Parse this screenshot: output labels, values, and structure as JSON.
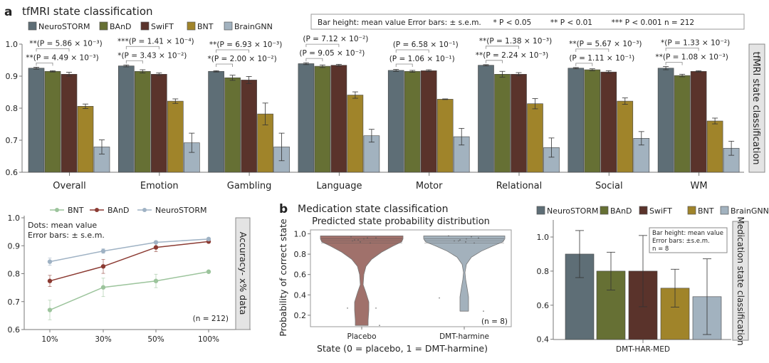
{
  "panel_a": {
    "letter": "a",
    "title": "tfMRI state classification",
    "legend_box_text": "Bar height: mean value Error bars: ± s.e.m.     * P < 0.05        ** P < 0.01        *** P < 0.001 n = 212",
    "side_label": "tfMRI state classification"
  },
  "panel_b": {
    "letter": "b",
    "title": "Medication state classification"
  },
  "colors": {
    "NeuroSTORM": "#5e6e76",
    "BAnD": "#667034",
    "SwiFT": "#5a332b",
    "BNT": "#a0842a",
    "BrainGNN": "#a2b2bf",
    "line_BNT": "#9cc49c",
    "line_BAnD": "#8b3a32",
    "line_NeuroSTORM": "#9fb2c4",
    "violin_placebo": "#a0716b",
    "violin_dmt": "#a3b1bc"
  },
  "chart_data": [
    {
      "id": "tfmri",
      "type": "bar",
      "title": "tfMRI state classification",
      "ylabel": "",
      "xlabel": "",
      "ylim": [
        0.6,
        1.0
      ],
      "yticks": [
        "0.6",
        "0.7",
        "0.8",
        "0.9",
        "1.0"
      ],
      "legend": [
        "NeuroSTORM",
        "BAnD",
        "SwiFT",
        "BNT",
        "BrainGNN"
      ],
      "legend_position": "top-left",
      "categories": [
        "Overall",
        "Emotion",
        "Gambling",
        "Language",
        "Motor",
        "Relational",
        "Social",
        "WM"
      ],
      "series": [
        {
          "name": "NeuroSTORM",
          "values": [
            0.925,
            0.932,
            0.915,
            0.939,
            0.918,
            0.934,
            0.925,
            0.925
          ],
          "sem": [
            0.003,
            0.003,
            0.002,
            0.003,
            0.003,
            0.002,
            0.002,
            0.005
          ]
        },
        {
          "name": "BAnD",
          "values": [
            0.915,
            0.915,
            0.895,
            0.931,
            0.915,
            0.906,
            0.92,
            0.902
          ],
          "sem": [
            0.002,
            0.005,
            0.008,
            0.004,
            0.003,
            0.009,
            0.003,
            0.004
          ]
        },
        {
          "name": "SwiFT",
          "values": [
            0.906,
            0.906,
            0.888,
            0.934,
            0.917,
            0.906,
            0.913,
            0.915
          ],
          "sem": [
            0.006,
            0.004,
            0.011,
            0.003,
            0.003,
            0.005,
            0.004,
            0.002
          ]
        },
        {
          "name": "BNT",
          "values": [
            0.806,
            0.822,
            0.782,
            0.841,
            0.828,
            0.814,
            0.822,
            0.76
          ],
          "sem": [
            0.007,
            0.007,
            0.034,
            0.01,
            0.001,
            0.016,
            0.01,
            0.009
          ]
        },
        {
          "name": "BrainGNN",
          "values": [
            0.679,
            0.692,
            0.679,
            0.714,
            0.711,
            0.677,
            0.706,
            0.675
          ],
          "sem": [
            0.022,
            0.03,
            0.043,
            0.02,
            0.026,
            0.03,
            0.021,
            0.022
          ]
        }
      ],
      "annotations": [
        {
          "category": "Overall",
          "upper": "**(P = 5.86 × 10⁻³)",
          "lower": "**(P = 4.49 × 10⁻³)"
        },
        {
          "category": "Emotion",
          "upper": "***(P = 1.41 × 10⁻⁴)",
          "lower": "*(P = 3.43 × 10⁻²)"
        },
        {
          "category": "Gambling",
          "upper": "**(P = 6.93 × 10⁻³)",
          "lower": "*(P = 2.00 × 10⁻²)"
        },
        {
          "category": "Language",
          "upper": "(P = 7.12 × 10⁻²)",
          "lower": "(P = 9.05 × 10⁻²)"
        },
        {
          "category": "Motor",
          "upper": "(P = 6.58 × 10⁻¹)",
          "lower": "(P = 1.06 × 10⁻¹)"
        },
        {
          "category": "Relational",
          "upper": "**(P = 1.38 × 10⁻³)",
          "lower": "**(P = 2.24 × 10⁻³)"
        },
        {
          "category": "Social",
          "upper": "**(P = 5.67 × 10⁻³)",
          "lower": "(P = 1.11 × 10⁻¹)"
        },
        {
          "category": "WM",
          "upper": "*(P = 1.33 × 10⁻²)",
          "lower": "**(P = 1.08 × 10⁻³)"
        }
      ]
    },
    {
      "id": "accuracy_x_data",
      "type": "line",
      "title": "",
      "xlabel": "",
      "ylabel": "",
      "x": [
        "10%",
        "30%",
        "50%",
        "100%"
      ],
      "ylim": [
        0.6,
        1.0
      ],
      "yticks": [
        "0.6",
        "0.7",
        "0.8",
        "0.9",
        "1.0"
      ],
      "legend": [
        "BNT",
        "BAnD",
        "NeuroSTORM"
      ],
      "legend_position": "top",
      "series": [
        {
          "name": "BNT",
          "values": [
            0.67,
            0.751,
            0.774,
            0.807
          ],
          "sem": [
            0.035,
            0.033,
            0.024,
            0.003
          ]
        },
        {
          "name": "BAnD",
          "values": [
            0.774,
            0.826,
            0.894,
            0.915
          ],
          "sem": [
            0.02,
            0.025,
            0.015,
            0.003
          ]
        },
        {
          "name": "NeuroSTORM",
          "values": [
            0.843,
            0.881,
            0.912,
            0.924
          ],
          "sem": [
            0.013,
            0.008,
            0.004,
            0.003
          ]
        }
      ],
      "note_lines": [
        "Dots: mean value",
        "Error bars: ± s.e.m."
      ],
      "n_label": "(n = 212)",
      "side_label": "Accuracy- x% data"
    },
    {
      "id": "violin",
      "type": "violin",
      "title": "Predicted state probability distribution",
      "xlabel": "State (0 = placebo, 1 = DMT-harmine)",
      "ylabel": "Probability of correct state",
      "categories": [
        "Placebo",
        "DMT-harmine"
      ],
      "ylim": [
        0.1,
        1.0
      ],
      "yticks": [
        "0.2",
        "0.4",
        "0.6",
        "0.8",
        "1.0"
      ],
      "distribution_ranges": [
        [
          0.1,
          0.98
        ],
        [
          0.24,
          0.98
        ]
      ],
      "points": [
        [
          0.97,
          0.96,
          0.95,
          0.94,
          0.93,
          0.92,
          0.91,
          0.96,
          0.94,
          0.27,
          0.27,
          0.1
        ],
        [
          0.98,
          0.97,
          0.95,
          0.94,
          0.93,
          0.92,
          0.91,
          0.96,
          0.93,
          0.37,
          0.24
        ]
      ],
      "n_label": "(n = 8)"
    },
    {
      "id": "medication",
      "type": "bar",
      "title": "Medication state classification",
      "categories": [
        "DMT-HAR-MED"
      ],
      "ylim": [
        0.4,
        1.1
      ],
      "yticks": [
        "0.4",
        "0.6",
        "0.8",
        "1.0"
      ],
      "legend": [
        "NeuroSTORM",
        "BAnD",
        "SwiFT",
        "BNT",
        "BrainGNN"
      ],
      "legend_position": "top",
      "series": [
        {
          "name": "NeuroSTORM",
          "values": [
            0.9
          ],
          "sem": [
            0.138
          ]
        },
        {
          "name": "BAnD",
          "values": [
            0.8
          ],
          "sem": [
            0.111
          ]
        },
        {
          "name": "SwiFT",
          "values": [
            0.8
          ],
          "sem": [
            0.209
          ]
        },
        {
          "name": "BNT",
          "values": [
            0.7
          ],
          "sem": [
            0.111
          ]
        },
        {
          "name": "BrainGNN",
          "values": [
            0.65
          ],
          "sem": [
            0.222
          ]
        }
      ],
      "note_lines": [
        "Bar height: mean value",
        "Error bars: ±s.e.m.",
        "n = 8"
      ],
      "side_label": "Medication state classification"
    }
  ]
}
